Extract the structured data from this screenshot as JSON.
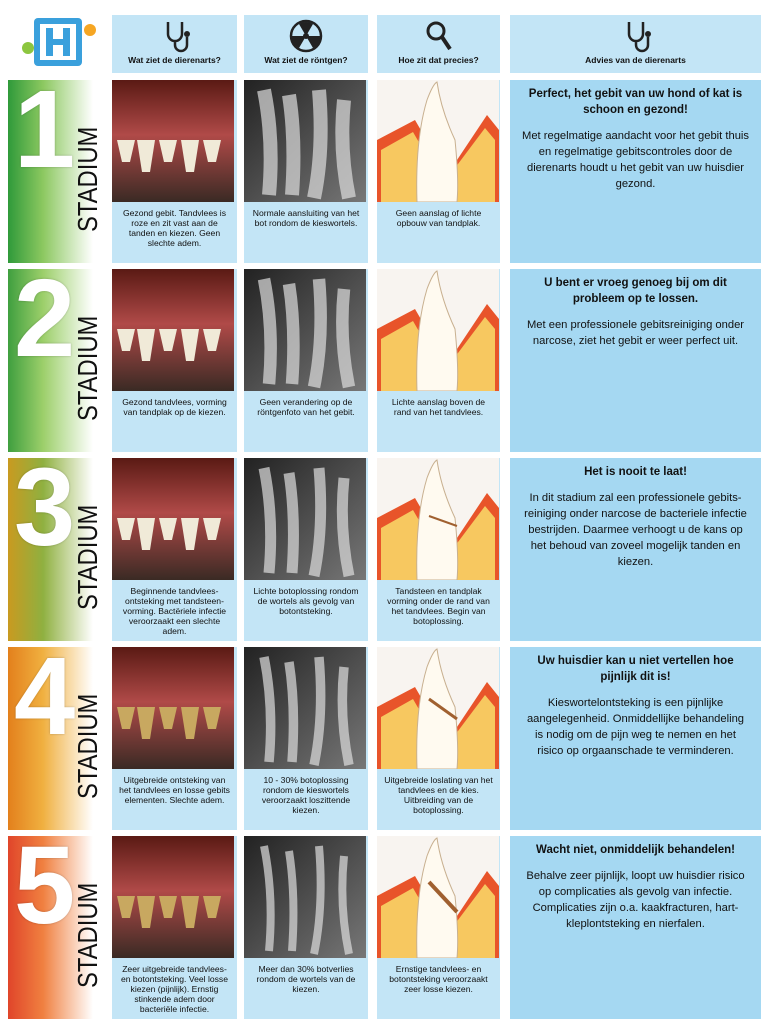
{
  "header": {
    "columns": [
      "Wat ziet de dierenarts?",
      "Wat ziet de röntgen?",
      "Hoe zit dat precies?",
      "Advies van de dierenarts"
    ]
  },
  "stages": [
    {
      "number": "1",
      "label": "STADIUM",
      "captions": [
        "Gezond gebit. Tandvlees is roze en zit vast aan de tanden en kiezen. Geen slechte adem.",
        "Normale aansluiting van het bot rondom de kieswortels.",
        "Geen aanslag of lichte opbouw van tandplak."
      ],
      "advice_title": "Perfect, het gebit van uw hond of kat is schoon en gezond!",
      "advice_text": "Met regelmatige aandacht voor het gebit thuis en regelmatige gebitscontroles door de dierenarts houdt u het gebit van uw huisdier gezond."
    },
    {
      "number": "2",
      "label": "STADIUM",
      "captions": [
        "Gezond tandvlees, vorming van tandplak op de kiezen.",
        "Geen verandering op de röntgenfoto van het gebit.",
        "Lichte aanslag boven de rand van het tandvlees."
      ],
      "advice_title": "U bent er vroeg genoeg bij om dit probleem op te lossen.",
      "advice_text": "Met een professionele gebitsreiniging onder narcose, ziet het gebit er weer perfect uit."
    },
    {
      "number": "3",
      "label": "STADIUM",
      "captions": [
        "Beginnende tandvlees-ontsteking met tandsteen-vorming. Bactëriele infectie veroorzaakt een slechte adem.",
        "Lichte botoplossing rondom de wortels als gevolg van botontsteking.",
        "Tandsteen en tandplak vorming onder de rand van het tandvlees. Begin van botoplossing."
      ],
      "advice_title": "Het is nooit te laat!",
      "advice_text": "In dit stadium zal een professionele gebits-reiniging onder narcose de bacteriele infectie bestrijden. Daarmee verhoogt u de kans op het behoud van zoveel mogelijk tanden en kiezen."
    },
    {
      "number": "4",
      "label": "STADIUM",
      "captions": [
        "Uitgebreide ontsteking van het tandvlees en losse gebits elementen. Slechte adem.",
        "10 - 30% botoplossing rondom de kieswortels veroorzaakt loszittende kiezen.",
        "Uitgebreide loslating van het tandvlees en de kies. Uitbreiding van de botoplossing."
      ],
      "advice_title": "Uw huisdier kan u niet vertellen hoe pijnlijk dit is!",
      "advice_text": "Kieswortelontsteking is een pijnlijke aangelegenheid. Onmiddellijke behandeling is nodig om de pijn weg te nemen en het risico op orgaanschade te verminderen."
    },
    {
      "number": "5",
      "label": "STADIUM",
      "captions": [
        "Zeer uitgebreide tandvlees-en botontsteking. Veel losse kiezen (pijnlijk). Ernstig stinkende adem door bacteriële infectie.",
        "Meer dan 30% botverlies rondom de wortels van de kiezen.",
        "Ernstige tandvlees- en botontsteking veroorzaakt zeer losse kiezen."
      ],
      "advice_title": "Wacht niet, onmiddelijk behandelen!",
      "advice_text": "Behalve zeer pijnlijk, loopt uw huisdier risico op complicaties als gevolg van infectie. Complicaties zijn o.a. kaakfracturen, hart-kleplontsteking en nierfalen."
    }
  ]
}
